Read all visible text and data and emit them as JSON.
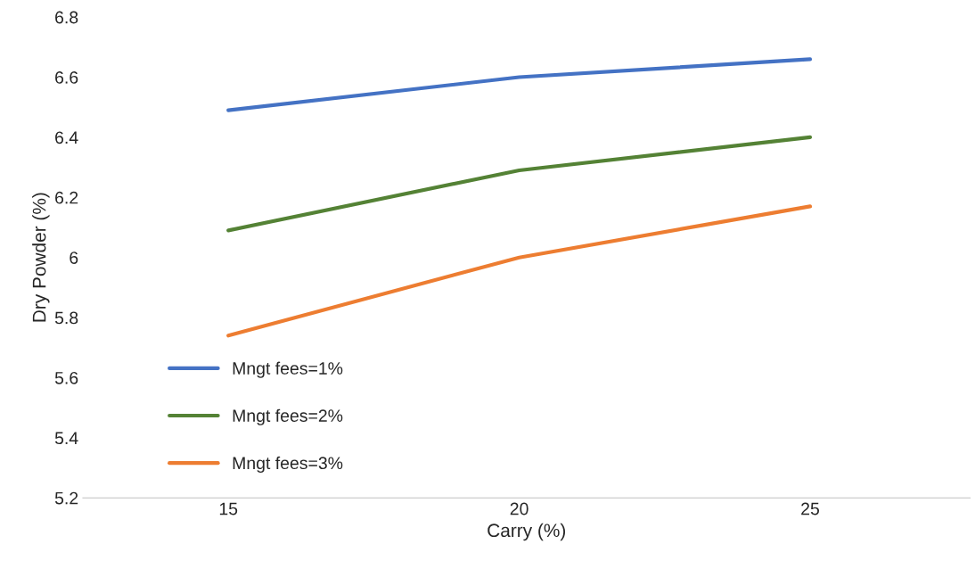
{
  "chart_data": {
    "type": "line",
    "xlabel": "Carry (%)",
    "ylabel": "Dry Powder (%)",
    "categories": [
      "15",
      "20",
      "25"
    ],
    "series": [
      {
        "name": "Mngt fees=1%",
        "color": "#4472c4",
        "values": [
          6.49,
          6.6,
          6.66
        ]
      },
      {
        "name": "Mngt fees=2%",
        "color": "#548235",
        "values": [
          6.09,
          6.29,
          6.4
        ]
      },
      {
        "name": "Mngt fees=3%",
        "color": "#ed7d31",
        "values": [
          5.74,
          6.0,
          6.17
        ]
      }
    ],
    "ylim": [
      5.2,
      6.8
    ],
    "yticks": [
      5.2,
      5.4,
      5.6,
      5.8,
      6,
      6.2,
      6.4,
      6.6,
      6.8
    ],
    "grid": false,
    "legend": "bottom left",
    "marker": "none",
    "line_style": "solid"
  }
}
